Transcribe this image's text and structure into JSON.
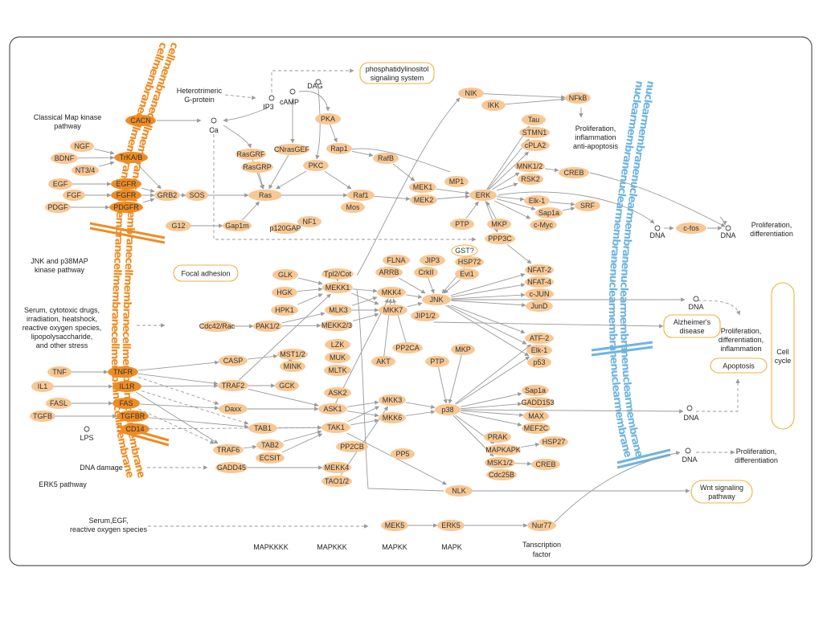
{
  "colors": {
    "node_fill": "#f7c894",
    "node_fill_dark": "#ee8c24",
    "cell_membrane": "#ee8c24",
    "nuclear_membrane": "#6eb4e0",
    "box_border": "#f0b040",
    "arrow": "#9a9a9a",
    "frame": "#555555"
  },
  "membranes": {
    "cell": "cellmembranecellmembranecellmembranecellmembranecellmembranecellmembrane",
    "nuclear": "nuclearmembranenuclearmembranenuclearmembranenuclearmembrane"
  },
  "boxes": {
    "pi_system": [
      "phosphatidylinositol",
      "signaling system"
    ],
    "focal": "Focal adhesion",
    "alzheimer": [
      "Alzheimer's",
      "disease"
    ],
    "apoptosis": "Apoptosis",
    "cellcycle": [
      "Cell",
      "cycle"
    ],
    "wnt": [
      "Wnt signaling",
      "pathway"
    ]
  },
  "nodes": {
    "CACN": "CACN",
    "NGF": "NGF",
    "BDNF": "BDNF",
    "TrKAB": "TrKA/B",
    "NT34": "NT3/4",
    "EGF": "EGF",
    "EGFR": "EGFR",
    "FGF": "FGF",
    "FGFR": "FGFR",
    "PDGF": "PDGF",
    "PDGFR": "PDGFR",
    "GRB2": "GRB2",
    "SOS": "SOS",
    "G12": "G12",
    "Gap1m": "Gap1m",
    "RasGRF": "RasGRF",
    "RasGRP": "RasGRP",
    "CNrasGEF": "CNrasGEF",
    "Ras": "Ras",
    "PKC": "PKC",
    "PKA": "PKA",
    "Rap1": "Rap1",
    "RafB": "RafB",
    "Raf1": "Raf1",
    "Mos": "Mos",
    "p120GAP": "p120GAP",
    "NF1": "NF1",
    "MEK1": "MEK1",
    "MEK2": "MEK2",
    "MP1": "MP1",
    "ERK": "ERK",
    "PTP1": "PTP",
    "MKP1": "MKP",
    "NIK": "NIK",
    "IKK": "IKK",
    "NFkB": "NFkB",
    "Tau": "Tau",
    "STMN1": "STMN1",
    "cPLA2": "cPLA2",
    "MNK12": "MNK1/2",
    "RSK2": "RSK2",
    "CREB1": "CREB",
    "Elk1a": "Elk-1",
    "Sap1a1": "Sap1a",
    "cMyc": "c-Myc",
    "SRF": "SRF",
    "cfos": "c-fos",
    "PPP3C": "PPP3C",
    "GST": "GST?",
    "HSP72": "HSP72",
    "Evi1": "Evi1",
    "FLNA": "FLNA",
    "JIP3": "JIP3",
    "ARRB": "ARRB",
    "CrkII": "CrkII",
    "JNK": "JNK",
    "JIP12": "JIP1/2",
    "NFAT2": "NFAT-2",
    "NFAT4": "NFAT-4",
    "cJUN": "c-JUN",
    "JunD": "JunD",
    "GLK": "GLK",
    "HGK": "HGK",
    "HPK1": "HPK1",
    "Tpl2": "Tpl2/Cot",
    "MEKK1": "MEKK1",
    "MLK3": "MLK3",
    "MEKK23": "MEKK2/3",
    "Cdc42": "Cdc42/Rac",
    "PAK12": "PAK1/2",
    "MKK4": "MKK4",
    "MKK7": "MKK7",
    "LZK": "LZK",
    "MUK": "MUK",
    "MLTK": "MLTK",
    "MST12": "MST1/2",
    "MINK": "MINK",
    "CASP": "CASP",
    "TRAF2": "TRAF2",
    "GCK": "GCK",
    "TNF": "TNF",
    "TNFR": "TNFR",
    "IL1": "IL1",
    "IL1R": "IL1R",
    "FASL": "FASL",
    "FAS": "FAS",
    "TGFB": "TGFB",
    "TGFBR": "TGFBR",
    "CD14": "CD14",
    "Daxx": "Daxx",
    "ASK2": "ASK2",
    "ASK1": "ASK1",
    "TAB1": "TAB1",
    "TAK1": "TAK1",
    "TRAF6": "TRAF6",
    "TAB2": "TAB2",
    "ECSIT": "ECSIT",
    "PP2CB": "PP2CB",
    "GADD45": "GADD45",
    "MEKK4": "MEKK4",
    "TAO12": "TAO1/2",
    "PP2CA": "PP2CA",
    "AKT": "AKT",
    "PTP2": "PTP",
    "MKP2": "MKP",
    "MKK3": "MKK3",
    "MKK6": "MKK6",
    "p38": "p38",
    "PP5": "PP5",
    "ATF2": "ATF-2",
    "Elk1b": "Elk-1",
    "p53": "p53",
    "Sap1a2": "Sap1a",
    "GADD153": "GADD153",
    "MAX": "MAX",
    "MEF2C": "MEF2C",
    "PRAK": "PRAK",
    "MAPKAPK": "MAPKAPK",
    "HSP27": "HSP27",
    "MSK12": "MSK1/2",
    "CREB2": "CREB",
    "Cdc25B": "Cdc25B",
    "NLK": "NLK",
    "MEK5": "MEK5",
    "ERK5": "ERK5",
    "Nur77": "Nur77"
  },
  "texts": {
    "classical": [
      "Classical Map kinase",
      "pathway"
    ],
    "jnk_p38": [
      "JNK and p38MAP",
      "kinase pathway"
    ],
    "stress": [
      "Serum, cytotoxic drugs,",
      "irradiation, heatshock,",
      "reactive oxygen species,",
      "lipopolysaccharide,",
      "and other stress"
    ],
    "erk5": "ERK5 pathway",
    "serum_egf": [
      "Serum,EGF,",
      "reactive oxygen species"
    ],
    "dna_damage": "DNA  damage",
    "LPS": "LPS",
    "hetero": [
      "Heterotrimeric",
      "G-protein"
    ],
    "IP3": "IP3",
    "cAMP": "cAMP",
    "DAG": "DAG",
    "Ca": "Ca",
    "nfkb_out": [
      "Proliferation,",
      "inflammation",
      "anti-apoptosis"
    ],
    "prolif_diff_1": [
      "Proliferation,",
      "differentiation"
    ],
    "prolif_diff_infl": [
      "Proliferation,",
      "differentiation,",
      "inflammation"
    ],
    "prolif_diff_2": [
      "Proliferation,",
      "differentiation"
    ],
    "dna": "DNA",
    "axis": [
      "MAPKKKK",
      "MAPKKK",
      "MAPKK",
      "MAPK",
      "Tanscription",
      "factor"
    ]
  }
}
